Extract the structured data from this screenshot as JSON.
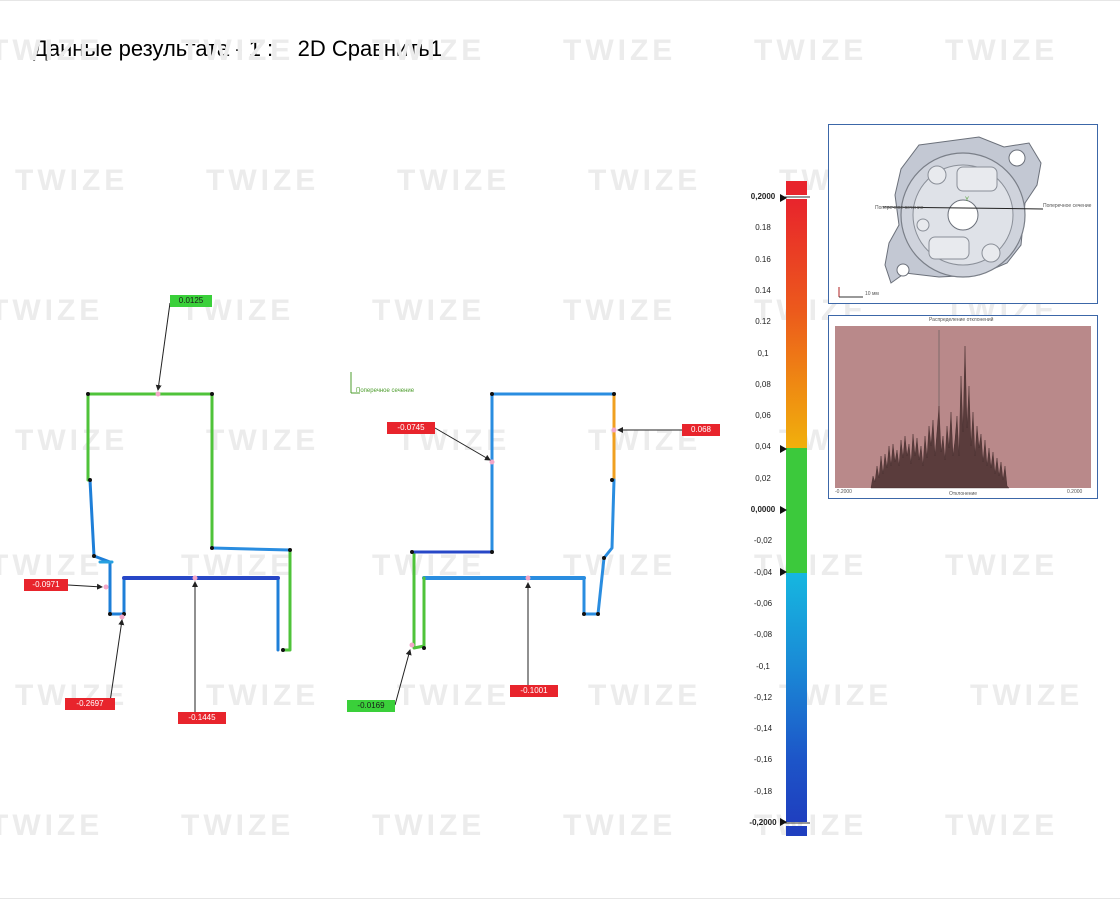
{
  "title": "Данные результата - 1 :    2D Сравнить1",
  "watermark": "TWIZE",
  "left_view": {
    "callouts": [
      {
        "id": "top",
        "value": "0.0125",
        "color": "green"
      },
      {
        "id": "left",
        "value": "-0.0971",
        "color": "red"
      },
      {
        "id": "bottom-left",
        "value": "-0.2697",
        "color": "red"
      },
      {
        "id": "bottom-mid",
        "value": "-0.1445",
        "color": "red"
      }
    ]
  },
  "right_view": {
    "axis_label": "Поперечное сечение",
    "callouts": [
      {
        "id": "top-left",
        "value": "-0.0745",
        "color": "red"
      },
      {
        "id": "top-right",
        "value": "0.068",
        "color": "red"
      },
      {
        "id": "bottom-left",
        "value": "-0.0169",
        "color": "green"
      },
      {
        "id": "bottom-mid",
        "value": "-0.1001",
        "color": "red"
      }
    ]
  },
  "color_scale": {
    "labels": [
      "0,2000",
      "0.18",
      "0.16",
      "0.14",
      "0.12",
      "0,1",
      "0,08",
      "0,06",
      "0,04",
      "0,02",
      "0,0000",
      "-0,02",
      "-0,04",
      "-0,06",
      "-0,08",
      "-0,1",
      "-0,12",
      "-0,14",
      "-0,16",
      "-0,18",
      "-0,2000"
    ],
    "max": 0.2,
    "min": -0.2,
    "tolerance_upper": 0.04,
    "tolerance_lower": -0.04,
    "upper_color": "#e8242c",
    "tolerance_color": "#3cc93c",
    "lower_color": "#1f3fbf"
  },
  "part_view": {
    "section_label_left": "Поперечное сечение",
    "section_label_right": "Поперечное сечение",
    "scale_text": "10 мм",
    "axis_label": "Y"
  },
  "histogram": {
    "title": "Распределение отклонений",
    "x_left": "-0.2000",
    "x_right": "0.2000",
    "x_label": "Отклонение"
  }
}
